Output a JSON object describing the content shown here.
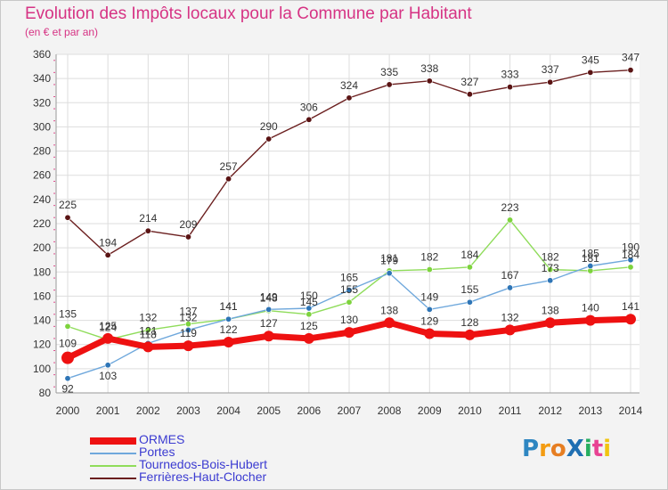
{
  "header": {
    "title": "Evolution des Impôts locaux pour la Commune par Habitant",
    "subtitle": "(en € et par an)"
  },
  "logo": {
    "text": "ProXiti",
    "letters": [
      {
        "ch": "P",
        "color": "#2e86c1"
      },
      {
        "ch": "r",
        "color": "#f39c12"
      },
      {
        "ch": "o",
        "color": "#e67e22"
      },
      {
        "ch": "X",
        "color": "#1f6fb2"
      },
      {
        "ch": "i",
        "color": "#27ae60"
      },
      {
        "ch": "t",
        "color": "#e84393"
      },
      {
        "ch": "i",
        "color": "#f1c40f"
      }
    ]
  },
  "chart_data": {
    "type": "line",
    "x": [
      "2000",
      "2001",
      "2002",
      "2003",
      "2004",
      "2005",
      "2006",
      "2007",
      "2008",
      "2009",
      "2010",
      "2011",
      "2012",
      "2013",
      "2014"
    ],
    "ylim": [
      80,
      360
    ],
    "yticks": [
      80,
      100,
      120,
      140,
      160,
      180,
      200,
      220,
      240,
      260,
      280,
      300,
      320,
      340,
      360
    ],
    "grid": true,
    "legend_position": "bottom-left",
    "series": [
      {
        "name": "ORMES",
        "color": "#ee1111",
        "values": [
          109,
          125,
          118,
          119,
          122,
          127,
          125,
          130,
          138,
          129,
          128,
          132,
          138,
          140,
          141
        ],
        "labels": true
      },
      {
        "name": "Portes",
        "color": "#6fa8dc",
        "values": [
          92,
          103,
          121,
          132,
          141,
          149,
          150,
          165,
          179,
          149,
          155,
          167,
          173,
          185,
          190
        ],
        "labels": true
      },
      {
        "name": "Tournedos-Bois-Hubert",
        "color": "#8fdc5a",
        "values": [
          135,
          124,
          132,
          137,
          141,
          148,
          145,
          155,
          181,
          182,
          184,
          223,
          182,
          181,
          184
        ],
        "labels": true
      },
      {
        "name": "Ferrières-Haut-Clocher",
        "color": "#6b1f1f",
        "values": [
          225,
          194,
          214,
          209,
          257,
          290,
          306,
          324,
          335,
          338,
          327,
          333,
          337,
          345,
          347
        ],
        "labels": true
      }
    ],
    "display_labels": {
      "ORMES": [
        "109",
        "125",
        "118",
        "119",
        "122",
        "127",
        "125",
        "130",
        "138",
        "129",
        "128",
        "132",
        "138",
        "140",
        "141"
      ],
      "Portes": [
        "92",
        "103",
        "121",
        "132",
        "141",
        "149",
        "150",
        "165",
        "179",
        "149",
        "155",
        "167",
        "173",
        "185",
        "190"
      ],
      "Tournedos-Bois-Hubert": [
        "135",
        "124",
        "132",
        "137",
        "141",
        "148",
        "145",
        "155",
        "181",
        "182",
        "184",
        "223",
        "182",
        "181",
        "184"
      ],
      "Ferrières-Haut-Clocher": [
        "225",
        "194",
        "214",
        "209",
        "257",
        "290",
        "306",
        "324",
        "335",
        "338",
        "327",
        "333",
        "337",
        "345",
        "347"
      ]
    }
  }
}
